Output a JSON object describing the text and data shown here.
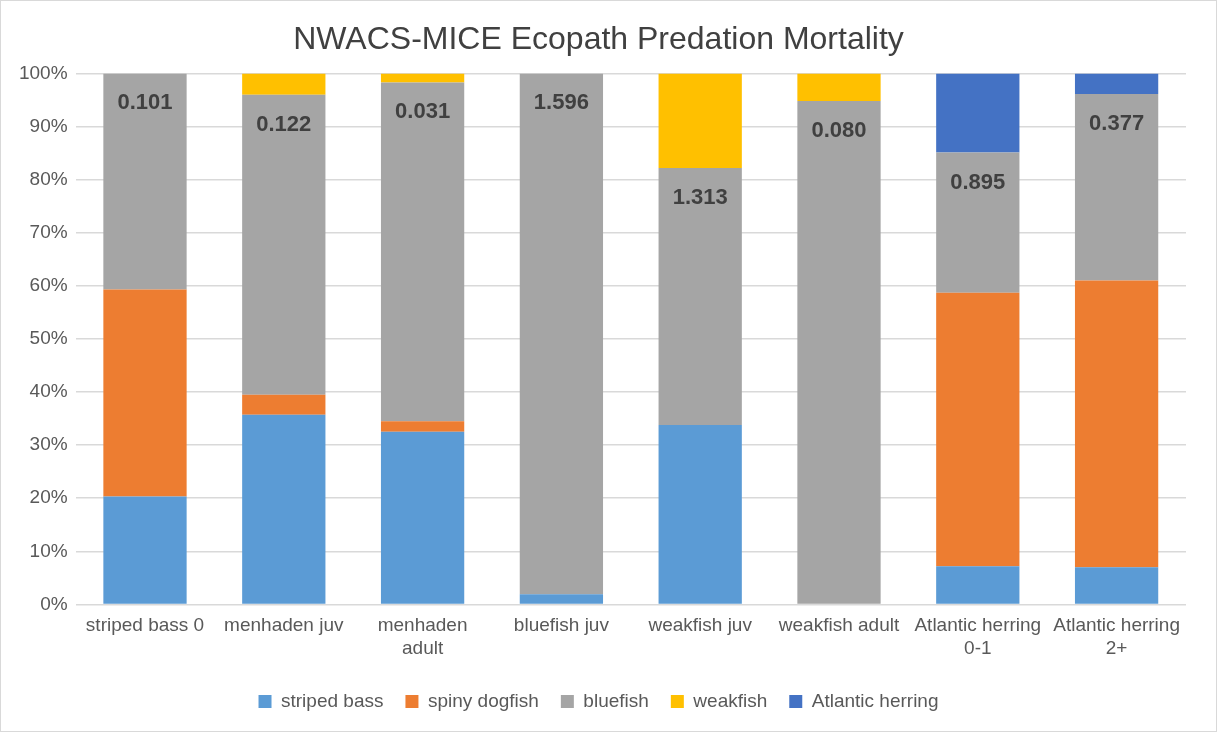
{
  "chart_data": {
    "type": "bar",
    "title": "NWACS-MICE Ecopath Predation Mortality",
    "stacked": true,
    "categories": [
      "striped bass 0",
      "menhaden juv",
      "menhaden adult",
      "bluefish juv",
      "weakfish juv",
      "weakfish adult",
      "Atlantic herring 0-1",
      "Atlantic herring 2+"
    ],
    "series": [
      {
        "name": "striped bass",
        "color": "#5b9bd5",
        "values": [
          20.3,
          35.7,
          32.5,
          1.9,
          33.8,
          0,
          7.2,
          7.0
        ]
      },
      {
        "name": "spiny dogfish",
        "color": "#ed7d31",
        "values": [
          39.0,
          3.8,
          2.0,
          0,
          0,
          0,
          51.5,
          54.0
        ]
      },
      {
        "name": "bluefish",
        "color": "#a5a5a5",
        "values": [
          40.7,
          56.5,
          63.8,
          98.1,
          48.4,
          94.8,
          26.4,
          35.1
        ]
      },
      {
        "name": "weakfish",
        "color": "#ffc000",
        "values": [
          0,
          4.0,
          1.7,
          0,
          17.8,
          5.2,
          0,
          0
        ]
      },
      {
        "name": "Atlantic herring",
        "color": "#4472c4",
        "values": [
          0,
          0,
          0,
          0,
          0,
          0,
          14.9,
          3.9
        ]
      }
    ],
    "ylim": [
      0,
      100
    ],
    "yticks": [
      {
        "value": 0,
        "label": "0%"
      },
      {
        "value": 10,
        "label": "10%"
      },
      {
        "value": 20,
        "label": "20%"
      },
      {
        "value": 30,
        "label": "30%"
      },
      {
        "value": 40,
        "label": "40%"
      },
      {
        "value": 50,
        "label": "50%"
      },
      {
        "value": 60,
        "label": "60%"
      },
      {
        "value": 70,
        "label": "70%"
      },
      {
        "value": 80,
        "label": "80%"
      },
      {
        "value": 90,
        "label": "90%"
      },
      {
        "value": 100,
        "label": "100%"
      }
    ],
    "grid": "y",
    "legend": "bottom",
    "annotations": [
      "0.101",
      "0.122",
      "0.031",
      "1.596",
      "1.313",
      "0.080",
      "0.895",
      "0.377"
    ]
  }
}
